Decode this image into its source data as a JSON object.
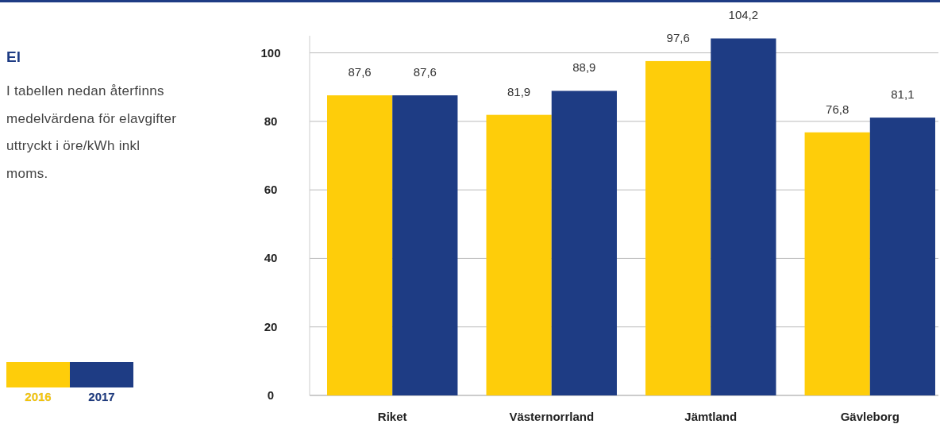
{
  "chart_data": {
    "type": "bar",
    "title": "El",
    "annotations": [
      "I tabellen nedan återfinns medelvärdena för elavgifter uttryckt i öre/kWh inkl moms."
    ],
    "categories": [
      "Riket",
      "Västernorrland",
      "Jämtland",
      "Gävleborg"
    ],
    "series": [
      {
        "name": "2016",
        "color": "#fecd0a",
        "values": [
          87.6,
          81.9,
          97.6,
          76.8
        ],
        "value_labels": [
          "87,6",
          "81,9",
          "97,6",
          "76,8"
        ]
      },
      {
        "name": "2017",
        "color": "#1e3c84",
        "values": [
          87.6,
          88.9,
          104.2,
          81.1
        ],
        "value_labels": [
          "87,6",
          "88,9",
          "104,2",
          "81,1"
        ]
      }
    ],
    "ylim": [
      0,
      105
    ],
    "yticks": [
      0,
      20,
      40,
      60,
      80,
      100
    ],
    "grid": "y",
    "legend": "bottom left"
  }
}
